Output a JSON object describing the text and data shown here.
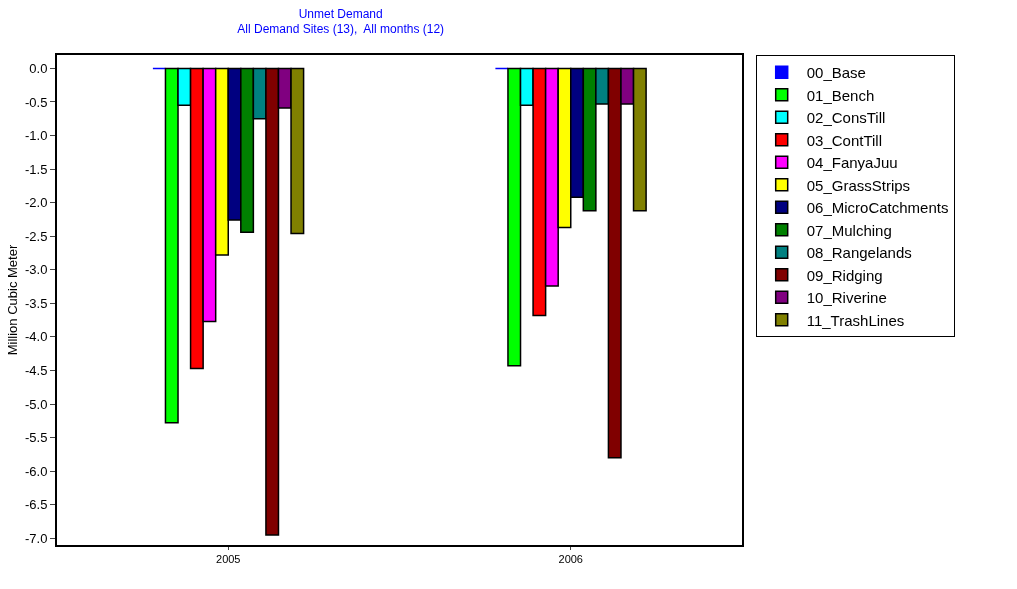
{
  "chart_data": {
    "type": "bar",
    "title": "Unmet Demand",
    "subtitle": "All Demand Sites (13),  All months (12)",
    "ylabel": "Million Cubic Meter",
    "categories": [
      "2005",
      "2006"
    ],
    "series": [
      {
        "name": "00_Base",
        "color": "#0000ff",
        "values": [
          0,
          0
        ]
      },
      {
        "name": "01_Bench",
        "color": "#00ff00",
        "values": [
          -5.28,
          -4.43
        ]
      },
      {
        "name": "02_ConsTill",
        "color": "#00ffff",
        "values": [
          -0.55,
          -0.55
        ]
      },
      {
        "name": "03_ContTill",
        "color": "#ff0000",
        "values": [
          -4.47,
          -3.68
        ]
      },
      {
        "name": "04_FanyaJuu",
        "color": "#ff00ff",
        "values": [
          -3.77,
          -3.24
        ]
      },
      {
        "name": "05_GrassStrips",
        "color": "#ffff00",
        "values": [
          -2.78,
          -2.37
        ]
      },
      {
        "name": "06_MicroCatchments",
        "color": "#000080",
        "values": [
          -2.26,
          -1.92
        ]
      },
      {
        "name": "07_Mulching",
        "color": "#008000",
        "values": [
          -2.44,
          -2.12
        ]
      },
      {
        "name": "08_Rangelands",
        "color": "#008080",
        "values": [
          -0.75,
          -0.53
        ]
      },
      {
        "name": "09_Ridging",
        "color": "#800000",
        "values": [
          -6.95,
          -5.8
        ]
      },
      {
        "name": "10_Riverine",
        "color": "#800080",
        "values": [
          -0.59,
          -0.53
        ]
      },
      {
        "name": "11_TrashLines",
        "color": "#808000",
        "values": [
          -2.46,
          -2.12
        ]
      }
    ],
    "ylim": [
      -7.1,
      0.2
    ],
    "yticks": [
      {
        "value": 0,
        "label": "0.0"
      },
      {
        "value": -0.5,
        "label": "-0.5"
      },
      {
        "value": -1,
        "label": "-1.0"
      },
      {
        "value": -1.5,
        "label": "-1.5"
      },
      {
        "value": -2,
        "label": "-2.0"
      },
      {
        "value": -2.5,
        "label": "-2.5"
      },
      {
        "value": -3,
        "label": "-3.0"
      },
      {
        "value": -3.5,
        "label": "-3.5"
      },
      {
        "value": -4,
        "label": "-4.0"
      },
      {
        "value": -4.5,
        "label": "-4.5"
      },
      {
        "value": -5,
        "label": "-5.0"
      },
      {
        "value": -5.5,
        "label": "-5.5"
      },
      {
        "value": -6,
        "label": "-6.0"
      },
      {
        "value": -6.5,
        "label": "-6.5"
      },
      {
        "value": -7,
        "label": "-7.0"
      }
    ],
    "grid": false,
    "legend": "top right"
  }
}
